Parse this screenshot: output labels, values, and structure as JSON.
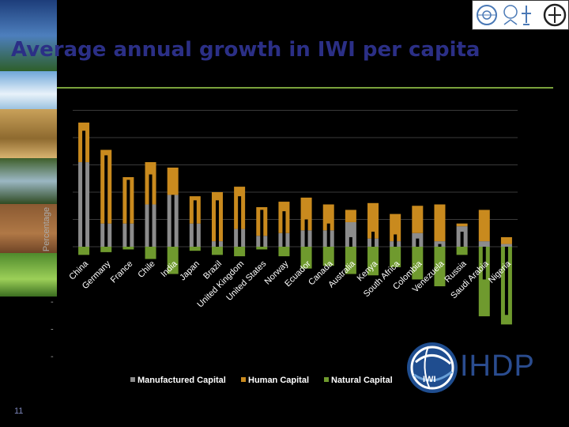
{
  "slide": {
    "title": "Average annual growth in IWI per capita",
    "slide_number": "11",
    "org_name": "IHDP",
    "org_badge": "IWI"
  },
  "colors": {
    "manufactured": "#8c8c8c",
    "human": "#c98a1e",
    "natural": "#6f9a2e",
    "title": "#2b2f86",
    "rule": "#7aa23c"
  },
  "chart_data": {
    "type": "bar",
    "stacked": true,
    "ylabel": "Percentage",
    "categories": [
      "China",
      "Germany",
      "France",
      "Chile",
      "India",
      "Japan",
      "Brazil",
      "United Kingdom",
      "United States",
      "Norway",
      "Ecuador",
      "Canada",
      "Australia",
      "Kenya",
      "South Africa",
      "Colombia",
      "Venezuela",
      "Russia",
      "Saudi Arabia",
      "Nigeria"
    ],
    "series": [
      {
        "name": "Manufactured Capital",
        "values": [
          3.1,
          0.85,
          0.85,
          1.55,
          1.9,
          0.85,
          0.2,
          0.65,
          0.4,
          0.5,
          0.6,
          0.6,
          0.9,
          0.3,
          0.2,
          0.5,
          0.2,
          0.75,
          0.2,
          0.1
        ]
      },
      {
        "name": "Human Capital",
        "values": [
          1.45,
          2.7,
          1.7,
          1.55,
          1.0,
          1.0,
          1.8,
          1.55,
          1.05,
          1.15,
          1.2,
          0.95,
          0.45,
          1.3,
          1.0,
          1.0,
          1.35,
          0.1,
          1.15,
          0.25
        ]
      },
      {
        "name": "Natural Capital",
        "values": [
          -0.3,
          -0.2,
          -0.1,
          -0.45,
          -1.0,
          -0.15,
          -0.3,
          -0.35,
          -0.1,
          -0.35,
          -0.8,
          -0.7,
          -1.0,
          -1.05,
          -0.75,
          -1.2,
          -1.45,
          -0.3,
          -2.55,
          -2.85
        ]
      }
    ],
    "net_change": [
      4.25,
      3.35,
      2.45,
      2.65,
      1.9,
      1.7,
      1.7,
      1.85,
      1.35,
      1.3,
      1.0,
      0.85,
      0.35,
      0.55,
      0.45,
      0.3,
      0.1,
      0.55,
      -1.2,
      -2.5
    ],
    "ylim": [
      -4.3,
      5.0
    ],
    "y_ticks": [
      5,
      4,
      3,
      2,
      1,
      0,
      -1,
      -2,
      -3,
      -4
    ],
    "visible_tick_labels": [
      "-",
      "-",
      "-"
    ],
    "grid": true,
    "legend_position": "bottom"
  }
}
